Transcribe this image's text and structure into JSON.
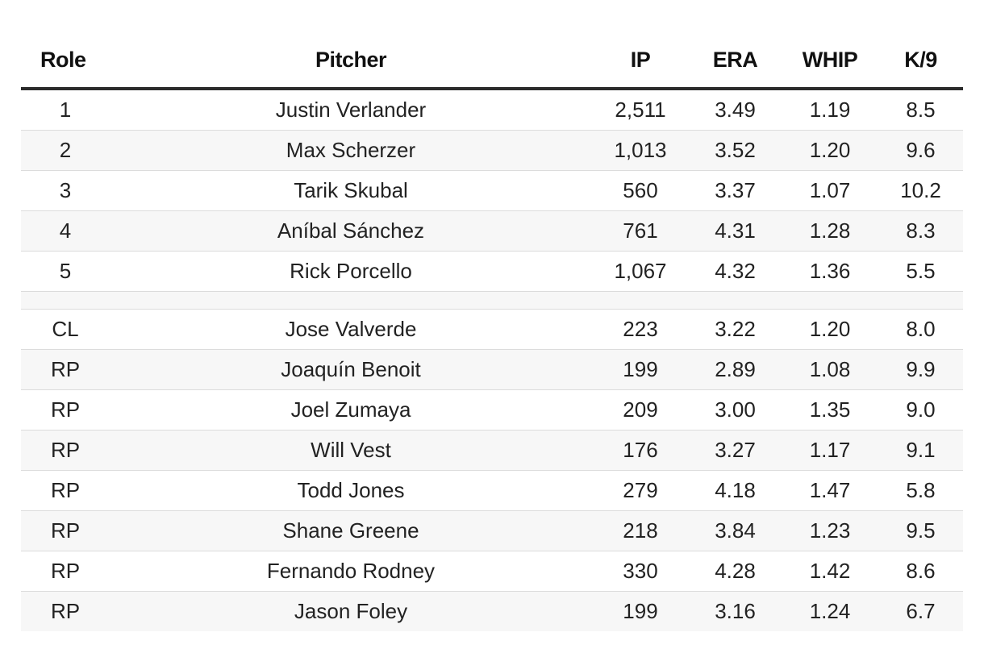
{
  "table": {
    "headers": {
      "role": "Role",
      "pitcher": "Pitcher",
      "ip": "IP",
      "era": "ERA",
      "whip": "WHIP",
      "k9": "K/9"
    },
    "starters": [
      {
        "role": "1",
        "pitcher": "Justin Verlander",
        "ip": "2,511",
        "era": "3.49",
        "whip": "1.19",
        "k9": "8.5"
      },
      {
        "role": "2",
        "pitcher": "Max Scherzer",
        "ip": "1,013",
        "era": "3.52",
        "whip": "1.20",
        "k9": "9.6"
      },
      {
        "role": "3",
        "pitcher": "Tarik Skubal",
        "ip": "560",
        "era": "3.37",
        "whip": "1.07",
        "k9": "10.2"
      },
      {
        "role": "4",
        "pitcher": "Aníbal Sánchez",
        "ip": "761",
        "era": "4.31",
        "whip": "1.28",
        "k9": "8.3"
      },
      {
        "role": "5",
        "pitcher": "Rick Porcello",
        "ip": "1,067",
        "era": "4.32",
        "whip": "1.36",
        "k9": "5.5"
      }
    ],
    "bullpen": [
      {
        "role": "CL",
        "pitcher": "Jose Valverde",
        "ip": "223",
        "era": "3.22",
        "whip": "1.20",
        "k9": "8.0"
      },
      {
        "role": "RP",
        "pitcher": "Joaquín Benoit",
        "ip": "199",
        "era": "2.89",
        "whip": "1.08",
        "k9": "9.9"
      },
      {
        "role": "RP",
        "pitcher": "Joel Zumaya",
        "ip": "209",
        "era": "3.00",
        "whip": "1.35",
        "k9": "9.0"
      },
      {
        "role": "RP",
        "pitcher": "Will Vest",
        "ip": "176",
        "era": "3.27",
        "whip": "1.17",
        "k9": "9.1"
      },
      {
        "role": "RP",
        "pitcher": "Todd Jones",
        "ip": "279",
        "era": "4.18",
        "whip": "1.47",
        "k9": "5.8"
      },
      {
        "role": "RP",
        "pitcher": "Shane Greene",
        "ip": "218",
        "era": "3.84",
        "whip": "1.23",
        "k9": "9.5"
      },
      {
        "role": "RP",
        "pitcher": "Fernando Rodney",
        "ip": "330",
        "era": "4.28",
        "whip": "1.42",
        "k9": "8.6"
      },
      {
        "role": "RP",
        "pitcher": "Jason Foley",
        "ip": "199",
        "era": "3.16",
        "whip": "1.24",
        "k9": "6.7"
      }
    ]
  }
}
